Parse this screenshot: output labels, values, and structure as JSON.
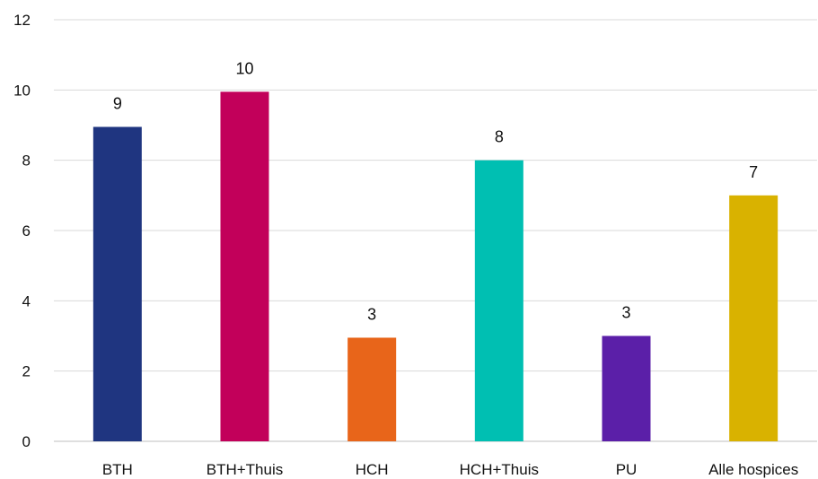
{
  "chart_data": {
    "type": "bar",
    "categories": [
      "BTH",
      "BTH+Thuis",
      "HCH",
      "HCH+Thuis",
      "PU",
      "Alle hospices"
    ],
    "values": [
      8.95,
      9.95,
      2.95,
      8.0,
      3.0,
      7.0
    ],
    "data_labels": [
      "9",
      "10",
      "3",
      "8",
      "3",
      "7"
    ],
    "colors": [
      "#1f3580",
      "#c2005a",
      "#e8651a",
      "#00bfb2",
      "#5b1fa8",
      "#d9b200"
    ],
    "ylim": [
      0,
      12
    ],
    "yticks": [
      0,
      2,
      4,
      6,
      8,
      10,
      12
    ],
    "grid": true,
    "legend": "none",
    "title": "",
    "xlabel": "",
    "ylabel": ""
  }
}
